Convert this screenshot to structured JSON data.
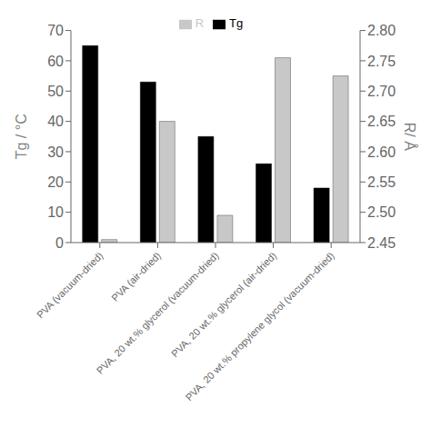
{
  "chart_data": {
    "type": "bar",
    "categories": [
      "PVA (vacuum-dried)",
      "PVA (air-dried)",
      "PVA, 20 wt.% glycerol (vacuum-dried)",
      "PVA, 20 wt.% glycerol (air-dried)",
      "PVA, 20 wt.% propylene glycol (vacuum-dried)"
    ],
    "series": [
      {
        "name": "Tg",
        "color": "#000000",
        "values": [
          65,
          53,
          35,
          26,
          18
        ]
      },
      {
        "name": "R",
        "color": "#c8c8c8",
        "values": [
          2.455,
          2.65,
          2.495,
          2.755,
          2.725
        ],
        "axis": "y2"
      }
    ],
    "ylabel": "Tg / °C",
    "y2label": "R/ Å",
    "ylim": [
      0,
      70
    ],
    "yticks": [
      0,
      10,
      20,
      30,
      40,
      50,
      60,
      70
    ],
    "y2lim": [
      2.45,
      2.8
    ],
    "y2ticks": [
      2.45,
      {
        "value": 2.5,
        "label": "2.50"
      },
      2.55,
      {
        "value": 2.6,
        "label": "2.60"
      },
      2.65,
      {
        "value": 2.7,
        "label": "2.70"
      },
      2.75,
      {
        "value": 2.8,
        "label": "2.80"
      }
    ],
    "grid": false,
    "legend": "upper center"
  }
}
